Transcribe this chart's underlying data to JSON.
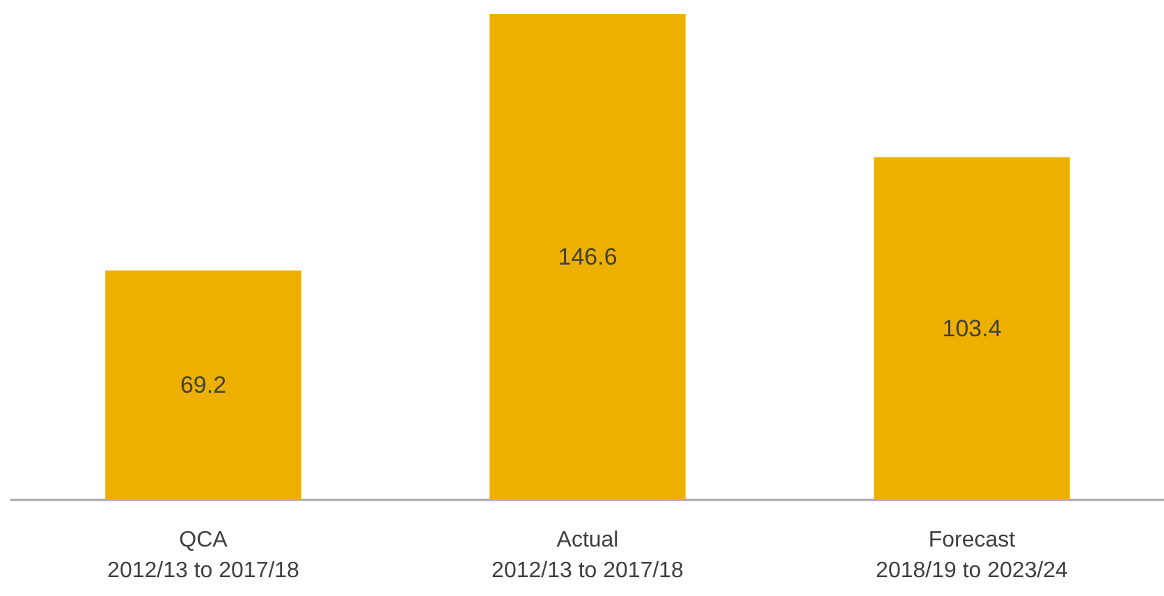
{
  "chart_data": {
    "type": "bar",
    "categories": [
      "QCA\n2012/13 to 2017/18",
      "Actual\n2012/13 to 2017/18",
      "Forecast\n2018/19 to 2023/24"
    ],
    "values": [
      69.2,
      146.6,
      103.4
    ],
    "color": "#eeb000",
    "data_labels": true
  }
}
